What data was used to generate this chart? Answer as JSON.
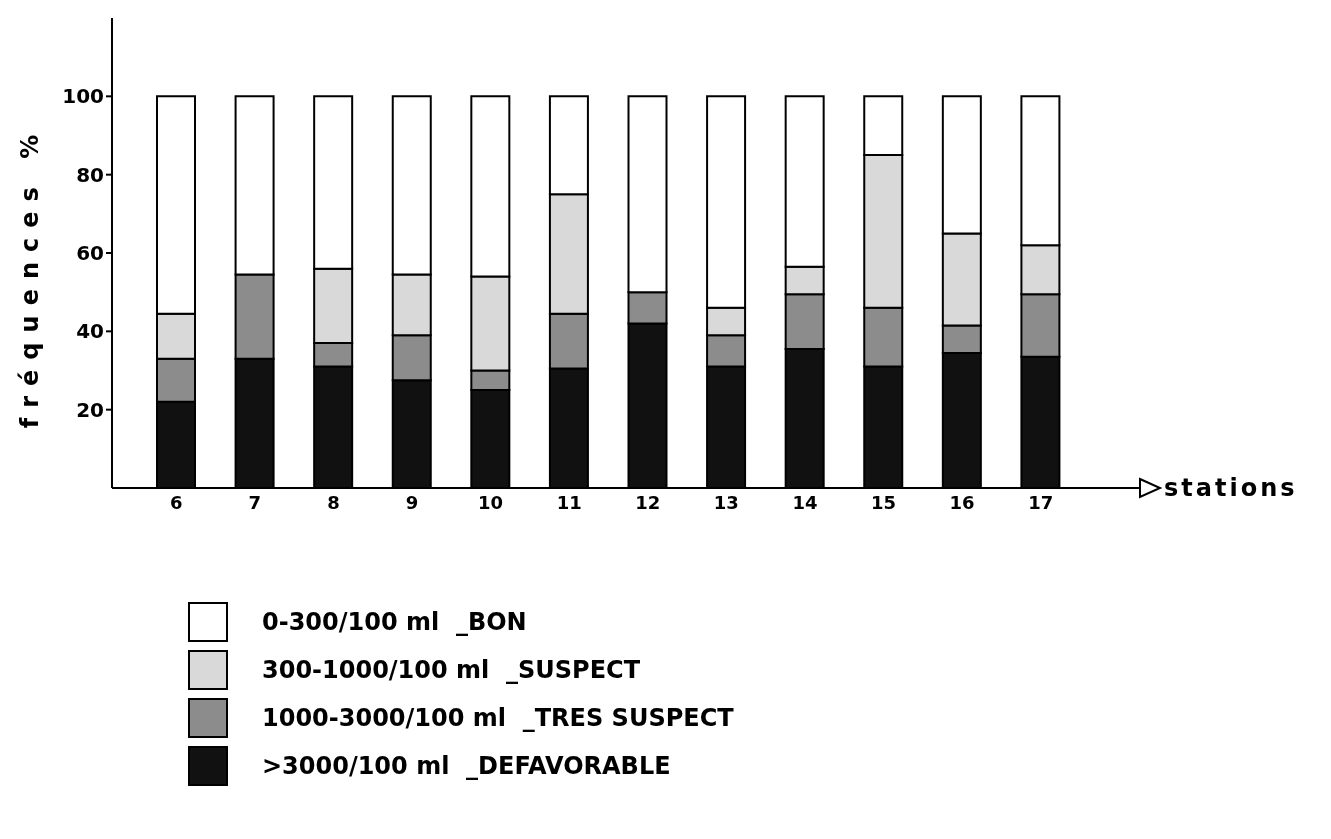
{
  "chart_data": {
    "type": "bar",
    "stacked": true,
    "ylabel": "fréquences %",
    "xlabel": "stations",
    "categories": [
      "6",
      "7",
      "8",
      "9",
      "10",
      "11",
      "12",
      "13",
      "14",
      "15",
      "16",
      "17"
    ],
    "series": [
      {
        "name": ">3000/100 ml  _DEFAVORABLE",
        "color": "#111111",
        "values": [
          22,
          33,
          31,
          27.5,
          25,
          30.5,
          42,
          31,
          35.5,
          31,
          34.5,
          33.5
        ]
      },
      {
        "name": "1000-3000/100 ml  _TRES SUSPECT",
        "color": "#8c8c8c",
        "values": [
          11,
          21.5,
          6,
          11.5,
          5,
          14,
          8,
          8,
          14,
          15,
          7,
          16
        ]
      },
      {
        "name": "300-1000/100 ml  _SUSPECT",
        "color": "#d9d9d9",
        "values": [
          11.5,
          0,
          19,
          15.5,
          24,
          30.5,
          0,
          7,
          7,
          39,
          23.5,
          12.5
        ]
      },
      {
        "name": "0-300/100 ml  _BON",
        "color": "#ffffff",
        "values": [
          55.5,
          45.5,
          44,
          45.5,
          46,
          25,
          50,
          54,
          43.5,
          15,
          35,
          38
        ]
      }
    ],
    "ylim": [
      0,
      120
    ],
    "yticks": [
      20,
      40,
      60,
      80,
      100
    ],
    "grid": false,
    "legend": "bottom"
  }
}
